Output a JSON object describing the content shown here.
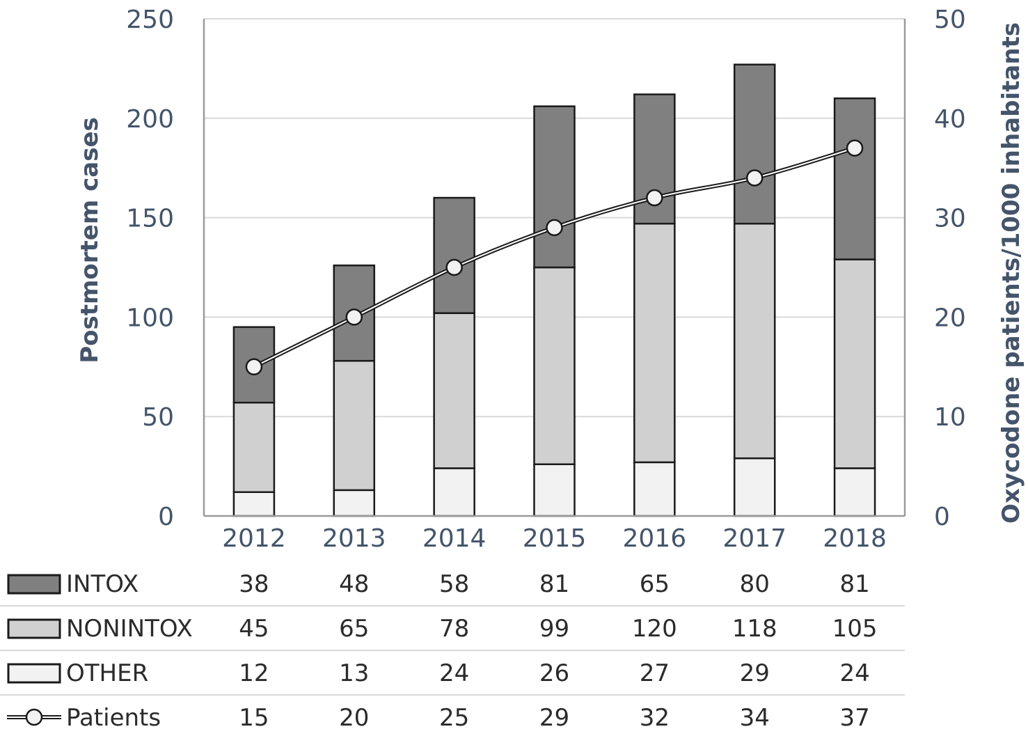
{
  "chart_data": {
    "type": "bar",
    "stacked": true,
    "categories": [
      "2012",
      "2013",
      "2014",
      "2015",
      "2016",
      "2017",
      "2018"
    ],
    "series": [
      {
        "name": "OTHER",
        "axis": "left",
        "values": [
          12,
          13,
          24,
          26,
          27,
          29,
          24
        ],
        "color": "#f2f2f2"
      },
      {
        "name": "NONINTOX",
        "axis": "left",
        "values": [
          45,
          65,
          78,
          99,
          120,
          118,
          105
        ],
        "color": "#d0d0d0"
      },
      {
        "name": "INTOX",
        "axis": "left",
        "values": [
          38,
          48,
          58,
          81,
          65,
          80,
          81
        ],
        "color": "#808080"
      }
    ],
    "line_series": {
      "name": "Patients",
      "type": "line",
      "axis": "right",
      "values": [
        15,
        20,
        25,
        29,
        32,
        34,
        37
      ]
    },
    "ylabel": "Postmortem cases",
    "y2label": "Oxycodone patients/1000 inhabitants",
    "ylim": [
      0,
      250
    ],
    "y2lim": [
      0,
      50
    ],
    "yticks": [
      "0",
      "50",
      "100",
      "150",
      "200",
      "250"
    ],
    "y2ticks": [
      "0",
      "10",
      "20",
      "30",
      "40",
      "50"
    ],
    "grid": true,
    "legend": "data table below chart",
    "table_rows": [
      {
        "label": "INTOX",
        "values": [
          "38",
          "48",
          "58",
          "81",
          "65",
          "80",
          "81"
        ]
      },
      {
        "label": "NONINTOX",
        "values": [
          "45",
          "65",
          "78",
          "99",
          "120",
          "118",
          "105"
        ]
      },
      {
        "label": "OTHER",
        "values": [
          "12",
          "13",
          "24",
          "26",
          "27",
          "29",
          "24"
        ]
      },
      {
        "label": "Patients",
        "values": [
          "15",
          "20",
          "25",
          "29",
          "32",
          "34",
          "37"
        ]
      }
    ]
  }
}
